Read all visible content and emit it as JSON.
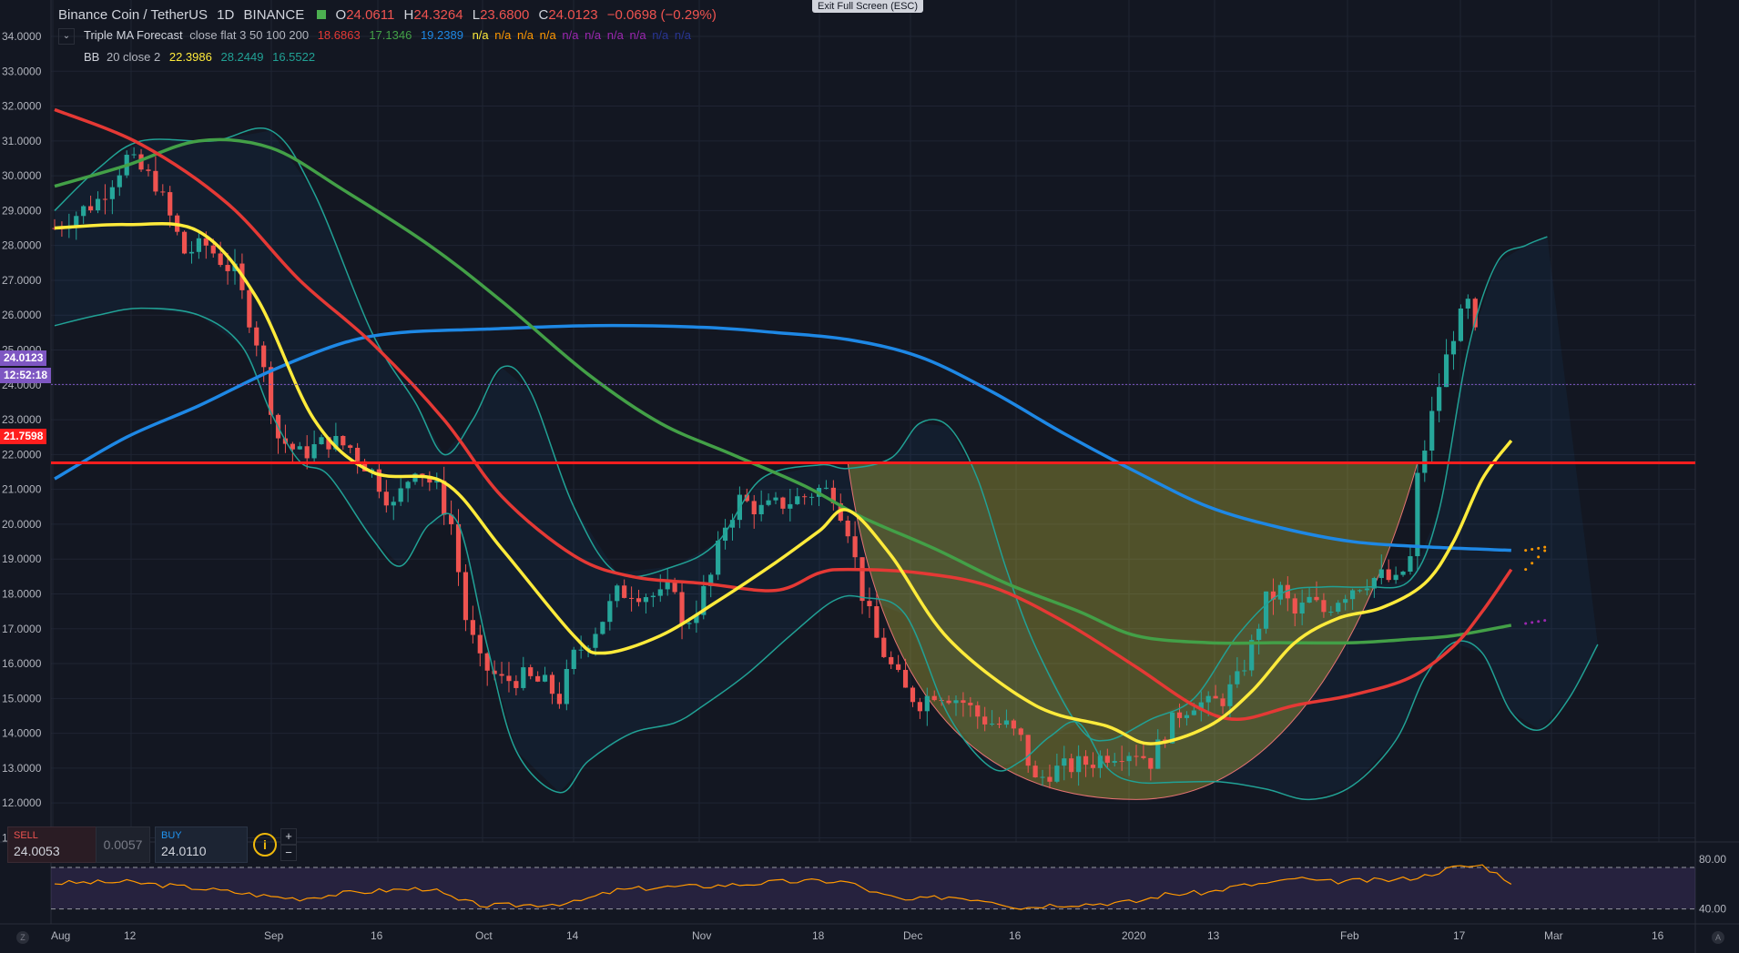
{
  "header": {
    "symbol_title": "Binance Coin / TetherUS",
    "interval": "1D",
    "exchange": "BINANCE",
    "ohlc": {
      "o_label": "O",
      "o": "24.0611",
      "h_label": "H",
      "h": "24.3264",
      "l_label": "L",
      "l": "23.6800",
      "c_label": "C",
      "c": "24.0123",
      "change": "−0.0698 (−0.29%)"
    },
    "exit_fullscreen": "Exit Full Screen (ESC)"
  },
  "indicators": {
    "ma": {
      "name": "Triple MA Forecast",
      "params": "close flat 3 50 100 200",
      "v1": "18.6863",
      "v2": "17.1346",
      "v3": "19.2389",
      "na": [
        "n/a",
        "n/a",
        "n/a",
        "n/a",
        "n/a",
        "n/a",
        "n/a",
        "n/a",
        "n/a",
        "n/a"
      ]
    },
    "bb": {
      "name": "BB",
      "params": "20 close 2",
      "basis": "22.3986",
      "upper": "28.2449",
      "lower": "16.5522"
    }
  },
  "price_tags": {
    "last": "24.0123",
    "countdown": "12:52:18",
    "hline": "21.7598"
  },
  "trade_panel": {
    "sell_label": "SELL",
    "sell_value": "24.0053",
    "spread": "0.0057",
    "buy_label": "BUY",
    "buy_value": "24.0110",
    "info_icon": "info-icon",
    "plus": "+",
    "minus": "−"
  },
  "rsi": {
    "upper_level": "80.00",
    "lower_level": "40.00"
  },
  "corner_buttons": {
    "left": "Z",
    "right": "A"
  },
  "colors": {
    "bg": "#131722",
    "grid": "#1f2433",
    "up": "#26a69a",
    "down": "#ef5350",
    "ma_fast": "#ffeb3b",
    "ma_red": "#e53935",
    "ma_green": "#43a047",
    "ma_blue": "#1e88e5",
    "bb": "#21a195",
    "hline": "#ff1e1e",
    "last_price": "#7e57c2",
    "rsi": "#ff9800"
  },
  "chart_data": {
    "type": "line",
    "title": "Binance Coin / TetherUS · 1D · BINANCE",
    "x_ticks": [
      "Aug",
      "12",
      "Sep",
      "16",
      "Oct",
      "14",
      "Nov",
      "18",
      "Dec",
      "16",
      "2020",
      "13",
      "Feb",
      "17",
      "Mar",
      "16"
    ],
    "y_ticks": [
      "34.0000",
      "33.0000",
      "32.0000",
      "31.0000",
      "30.0000",
      "29.0000",
      "28.0000",
      "27.0000",
      "26.0000",
      "25.0000",
      "24.0000",
      "23.0000",
      "22.0000",
      "21.0000",
      "20.0000",
      "19.0000",
      "18.0000",
      "17.0000",
      "16.0000",
      "15.0000",
      "14.0000",
      "13.0000",
      "12.0000",
      "11.0000"
    ],
    "ylim": [
      11,
      34
    ],
    "xlim": [
      0,
      211
    ],
    "bars_count": 198,
    "close_anchors": [
      [
        0,
        28.5
      ],
      [
        6,
        29.3
      ],
      [
        10,
        30.5
      ],
      [
        14,
        29.8
      ],
      [
        18,
        27.8
      ],
      [
        21,
        28.0
      ],
      [
        25,
        27.2
      ],
      [
        28,
        25.3
      ],
      [
        31,
        22.5
      ],
      [
        34,
        22.0
      ],
      [
        38,
        22.4
      ],
      [
        41,
        22.2
      ],
      [
        44,
        21.5
      ],
      [
        47,
        20.5
      ],
      [
        50,
        21.7
      ],
      [
        53,
        21.0
      ],
      [
        55,
        20.0
      ],
      [
        57,
        17.3
      ],
      [
        59,
        16.0
      ],
      [
        62,
        15.5
      ],
      [
        65,
        15.6
      ],
      [
        68,
        15.4
      ],
      [
        70,
        15.0
      ],
      [
        72,
        16.2
      ],
      [
        74,
        16.7
      ],
      [
        76,
        17.3
      ],
      [
        78,
        18.0
      ],
      [
        80,
        18.1
      ],
      [
        82,
        18.0
      ],
      [
        84,
        17.9
      ],
      [
        86,
        18.3
      ],
      [
        87,
        17.0
      ],
      [
        89,
        17.6
      ],
      [
        91,
        18.5
      ],
      [
        93,
        20.0
      ],
      [
        95,
        20.7
      ],
      [
        98,
        20.4
      ],
      [
        101,
        20.6
      ],
      [
        104,
        20.8
      ],
      [
        106,
        21.0
      ],
      [
        108,
        20.9
      ],
      [
        110,
        19.9
      ],
      [
        112,
        18.0
      ],
      [
        114,
        16.7
      ],
      [
        116,
        15.9
      ],
      [
        118,
        15.2
      ],
      [
        120,
        14.9
      ],
      [
        122,
        15.2
      ],
      [
        124,
        15.1
      ],
      [
        126,
        14.9
      ],
      [
        128,
        14.5
      ],
      [
        130,
        14.3
      ],
      [
        132,
        14.2
      ],
      [
        134,
        13.8
      ],
      [
        136,
        12.6
      ],
      [
        138,
        12.9
      ],
      [
        140,
        13.0
      ],
      [
        142,
        13.1
      ],
      [
        144,
        13.2
      ],
      [
        146,
        13.4
      ],
      [
        148,
        13.5
      ],
      [
        150,
        13.5
      ],
      [
        152,
        13.2
      ],
      [
        154,
        14.0
      ],
      [
        156,
        14.6
      ],
      [
        158,
        14.9
      ],
      [
        160,
        14.8
      ],
      [
        162,
        15.0
      ],
      [
        164,
        15.5
      ],
      [
        166,
        16.5
      ],
      [
        168,
        17.8
      ],
      [
        170,
        18.1
      ],
      [
        172,
        17.4
      ],
      [
        174,
        17.8
      ],
      [
        176,
        17.5
      ],
      [
        178,
        17.9
      ],
      [
        180,
        18.2
      ],
      [
        182,
        18.4
      ],
      [
        184,
        18.5
      ],
      [
        186,
        18.3
      ],
      [
        188,
        19.0
      ],
      [
        189,
        21.3
      ],
      [
        190,
        22.2
      ],
      [
        192,
        24.0
      ],
      [
        194,
        25.5
      ],
      [
        196,
        26.3
      ],
      [
        197,
        25.4
      ],
      [
        199,
        24.5
      ],
      [
        200,
        23.5
      ],
      [
        202,
        24.0
      ]
    ],
    "series": [
      {
        "name": "MA 3",
        "values": [
          [
            0,
            28.5
          ],
          [
            10,
            28.6
          ],
          [
            20,
            28.4
          ],
          [
            28,
            26.5
          ],
          [
            36,
            23.0
          ],
          [
            44,
            21.5
          ],
          [
            54,
            21.2
          ],
          [
            62,
            19.3
          ],
          [
            72,
            16.8
          ],
          [
            76,
            16.3
          ],
          [
            84,
            16.8
          ],
          [
            92,
            17.8
          ],
          [
            100,
            18.9
          ],
          [
            106,
            19.8
          ],
          [
            110,
            20.4
          ],
          [
            116,
            19.1
          ],
          [
            124,
            16.7
          ],
          [
            136,
            14.8
          ],
          [
            146,
            14.2
          ],
          [
            152,
            13.7
          ],
          [
            160,
            14.2
          ],
          [
            166,
            15.2
          ],
          [
            172,
            16.6
          ],
          [
            178,
            17.3
          ],
          [
            184,
            17.6
          ],
          [
            190,
            18.3
          ],
          [
            194,
            19.5
          ],
          [
            198,
            21.3
          ],
          [
            202,
            22.4
          ]
        ]
      },
      {
        "name": "MA 50",
        "values": [
          [
            0,
            31.9
          ],
          [
            12,
            30.9
          ],
          [
            24,
            29.2
          ],
          [
            34,
            27.0
          ],
          [
            44,
            25.2
          ],
          [
            54,
            23.0
          ],
          [
            62,
            20.8
          ],
          [
            72,
            19.1
          ],
          [
            80,
            18.5
          ],
          [
            90,
            18.3
          ],
          [
            100,
            18.1
          ],
          [
            106,
            18.6
          ],
          [
            110,
            18.7
          ],
          [
            120,
            18.6
          ],
          [
            130,
            18.2
          ],
          [
            140,
            17.2
          ],
          [
            150,
            15.9
          ],
          [
            158,
            14.8
          ],
          [
            164,
            14.4
          ],
          [
            172,
            14.8
          ],
          [
            180,
            15.1
          ],
          [
            188,
            15.6
          ],
          [
            194,
            16.5
          ],
          [
            198,
            17.5
          ],
          [
            202,
            18.7
          ]
        ]
      },
      {
        "name": "MA 100",
        "values": [
          [
            0,
            29.7
          ],
          [
            10,
            30.3
          ],
          [
            20,
            31.0
          ],
          [
            30,
            30.8
          ],
          [
            40,
            29.6
          ],
          [
            52,
            28.0
          ],
          [
            62,
            26.4
          ],
          [
            74,
            24.3
          ],
          [
            84,
            22.9
          ],
          [
            94,
            22.0
          ],
          [
            104,
            21.1
          ],
          [
            112,
            20.2
          ],
          [
            122,
            19.3
          ],
          [
            132,
            18.3
          ],
          [
            142,
            17.5
          ],
          [
            150,
            16.8
          ],
          [
            160,
            16.6
          ],
          [
            170,
            16.6
          ],
          [
            180,
            16.6
          ],
          [
            188,
            16.7
          ],
          [
            194,
            16.8
          ],
          [
            202,
            17.1
          ]
        ]
      },
      {
        "name": "MA 200",
        "values": [
          [
            0,
            21.3
          ],
          [
            10,
            22.5
          ],
          [
            20,
            23.4
          ],
          [
            30,
            24.4
          ],
          [
            40,
            25.2
          ],
          [
            48,
            25.5
          ],
          [
            60,
            25.6
          ],
          [
            75,
            25.7
          ],
          [
            90,
            25.65
          ],
          [
            100,
            25.5
          ],
          [
            110,
            25.3
          ],
          [
            120,
            24.8
          ],
          [
            130,
            23.8
          ],
          [
            140,
            22.6
          ],
          [
            150,
            21.5
          ],
          [
            160,
            20.5
          ],
          [
            170,
            19.9
          ],
          [
            180,
            19.5
          ],
          [
            190,
            19.35
          ],
          [
            202,
            19.25
          ]
        ]
      },
      {
        "name": "BB Upper",
        "values": [
          [
            0,
            29.0
          ],
          [
            6,
            30.2
          ],
          [
            12,
            31.0
          ],
          [
            22,
            31.0
          ],
          [
            30,
            31.3
          ],
          [
            36,
            29.5
          ],
          [
            44,
            25.5
          ],
          [
            50,
            23.5
          ],
          [
            54,
            22.0
          ],
          [
            58,
            23.0
          ],
          [
            62,
            24.5
          ],
          [
            66,
            23.8
          ],
          [
            72,
            20.5
          ],
          [
            78,
            18.6
          ],
          [
            86,
            18.8
          ],
          [
            92,
            19.5
          ],
          [
            98,
            21.3
          ],
          [
            106,
            21.7
          ],
          [
            110,
            21.6
          ],
          [
            116,
            21.9
          ],
          [
            120,
            22.9
          ],
          [
            124,
            22.8
          ],
          [
            128,
            21.3
          ],
          [
            132,
            18.7
          ],
          [
            136,
            16.5
          ],
          [
            142,
            14.2
          ],
          [
            146,
            13.8
          ],
          [
            152,
            14.4
          ],
          [
            158,
            15.0
          ],
          [
            164,
            16.8
          ],
          [
            170,
            18.0
          ],
          [
            176,
            18.2
          ],
          [
            182,
            18.2
          ],
          [
            188,
            18.4
          ],
          [
            192,
            20.4
          ],
          [
            196,
            25.0
          ],
          [
            200,
            27.5
          ],
          [
            204,
            28.0
          ],
          [
            207,
            28.25
          ]
        ]
      },
      {
        "name": "BB Lower",
        "values": [
          [
            0,
            25.7
          ],
          [
            6,
            26.0
          ],
          [
            12,
            26.2
          ],
          [
            20,
            26.0
          ],
          [
            26,
            25.1
          ],
          [
            30,
            23.2
          ],
          [
            34,
            21.8
          ],
          [
            38,
            21.4
          ],
          [
            44,
            19.6
          ],
          [
            48,
            18.8
          ],
          [
            52,
            20.0
          ],
          [
            56,
            20.0
          ],
          [
            60,
            16.5
          ],
          [
            64,
            13.5
          ],
          [
            70,
            12.3
          ],
          [
            74,
            13.2
          ],
          [
            80,
            14.0
          ],
          [
            86,
            14.3
          ],
          [
            90,
            14.8
          ],
          [
            96,
            15.7
          ],
          [
            102,
            16.8
          ],
          [
            108,
            17.8
          ],
          [
            112,
            17.9
          ],
          [
            118,
            17.4
          ],
          [
            124,
            14.5
          ],
          [
            130,
            13.0
          ],
          [
            134,
            13.2
          ],
          [
            138,
            13.9
          ],
          [
            142,
            14.3
          ],
          [
            146,
            13.0
          ],
          [
            150,
            12.6
          ],
          [
            156,
            12.6
          ],
          [
            162,
            12.6
          ],
          [
            168,
            12.4
          ],
          [
            174,
            12.1
          ],
          [
            180,
            12.5
          ],
          [
            186,
            13.8
          ],
          [
            190,
            15.6
          ],
          [
            194,
            16.6
          ],
          [
            198,
            16.3
          ],
          [
            202,
            14.6
          ],
          [
            206,
            14.1
          ],
          [
            210,
            15.0
          ],
          [
            214,
            16.55
          ]
        ]
      },
      {
        "name": "RSI",
        "values": [
          [
            0,
            65
          ],
          [
            10,
            66
          ],
          [
            20,
            60
          ],
          [
            30,
            52
          ],
          [
            34,
            50
          ],
          [
            40,
            55
          ],
          [
            46,
            58
          ],
          [
            52,
            60
          ],
          [
            56,
            48
          ],
          [
            60,
            43
          ],
          [
            66,
            44
          ],
          [
            72,
            46
          ],
          [
            78,
            58
          ],
          [
            84,
            61
          ],
          [
            90,
            62
          ],
          [
            96,
            64
          ],
          [
            100,
            66
          ],
          [
            106,
            67
          ],
          [
            110,
            66
          ],
          [
            114,
            55
          ],
          [
            118,
            48
          ],
          [
            124,
            52
          ],
          [
            130,
            48
          ],
          [
            134,
            41
          ],
          [
            138,
            44
          ],
          [
            144,
            45
          ],
          [
            150,
            47
          ],
          [
            154,
            54
          ],
          [
            160,
            56
          ],
          [
            164,
            62
          ],
          [
            170,
            66
          ],
          [
            172,
            70
          ],
          [
            176,
            66
          ],
          [
            180,
            67
          ],
          [
            186,
            68
          ],
          [
            190,
            72
          ],
          [
            194,
            80
          ],
          [
            198,
            82
          ],
          [
            200,
            74
          ],
          [
            202,
            66
          ]
        ]
      }
    ],
    "horizontal_line": 21.7598,
    "last_price": 24.0123,
    "annotations": [
      {
        "type": "cup-pattern",
        "from": [
          110,
          21.76
        ],
        "bottom": [
          150,
          12.1
        ],
        "to": [
          189,
          21.76
        ]
      }
    ],
    "grid": true
  }
}
